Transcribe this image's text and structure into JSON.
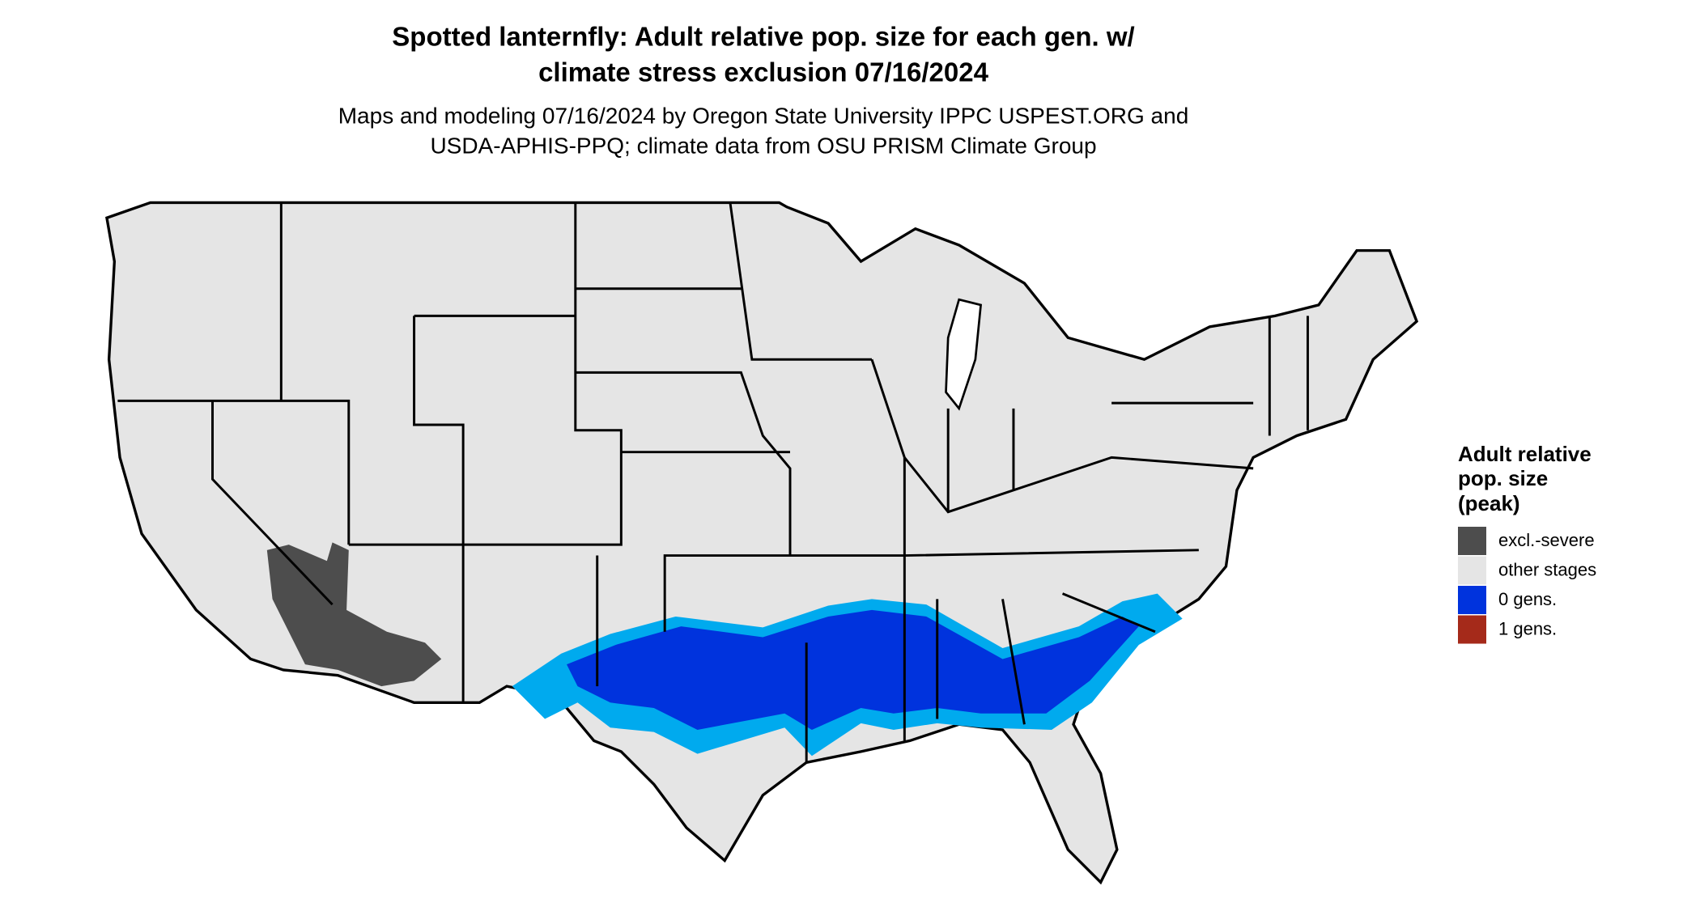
{
  "title": [
    "Spotted lanternfly: Adult relative pop. size for each gen. w/",
    "climate stress exclusion 07/16/2024"
  ],
  "subtitle": [
    "Maps and modeling 07/16/2024 by Oregon State University IPPC USPEST.ORG and",
    "USDA-APHIS-PPQ; climate data from OSU PRISM Climate Group"
  ],
  "legend": {
    "title": [
      "Adult relative",
      "pop. size",
      "(peak)"
    ],
    "items": [
      {
        "label": "excl.-severe",
        "color": "#4d4d4d"
      },
      {
        "label": "other stages",
        "color": "#e5e5e5"
      },
      {
        "label": "0 gens.",
        "color": "#0033dd"
      },
      {
        "label": "1 gens.",
        "color": "#a52a1a"
      }
    ]
  }
}
